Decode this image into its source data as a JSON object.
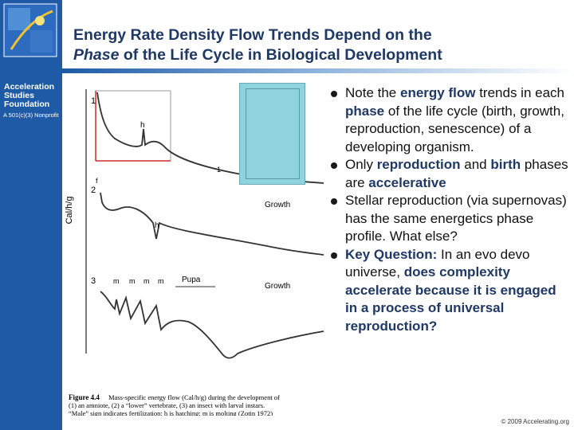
{
  "title": {
    "line1": "Energy Rate Density Flow Trends Depend on the",
    "line2_italic": "Phase",
    "line2_rest": " of the Life Cycle in Biological Development"
  },
  "sidebar": {
    "org_name": "Acceleration Studies Foundation",
    "org_sub": "A 501(c)(3) Nonprofit"
  },
  "figure": {
    "y_axis_label": "Cal/h/g",
    "curve1_num": "1",
    "curve2_num": "2",
    "curve3_num": "3",
    "h_label": "h",
    "f_label": "f",
    "growth_label": "Growth",
    "pupa_label": "Pupa",
    "m_label": "m",
    "caption_bold": "Figure 4.4",
    "caption_lines": [
      "Mass-specific energy flow (Cal/h/g) during the development of",
      "(1) an amniote, (2) a “lower” vertebrate, (3) an insect with larval instars.",
      "“Male” sign indicates fertilization; h is hatching; m is molting (Zotin 1972)"
    ]
  },
  "bullets": [
    {
      "parts": [
        [
          "Note the ",
          false
        ],
        [
          "energy flow",
          true
        ],
        [
          " trends in each ",
          false
        ],
        [
          "phase",
          true
        ],
        [
          " of the life cycle (birth, growth, reproduction, senescence) of a developing organism.",
          false
        ]
      ]
    },
    {
      "parts": [
        [
          "Only ",
          false
        ],
        [
          "reproduction",
          true
        ],
        [
          " and ",
          false
        ],
        [
          "birth",
          true
        ],
        [
          " phases are ",
          false
        ],
        [
          "accelerative",
          true
        ]
      ]
    },
    {
      "parts": [
        [
          "Stellar reproduction (via supernovas) has the same energetics phase profile. What else?",
          false
        ]
      ]
    },
    {
      "parts": [
        [
          "Key Question:",
          true
        ],
        [
          " In an evo devo universe, ",
          false
        ],
        [
          "does complexity accelerate because it is engaged in a process of universal reproduction?",
          true
        ]
      ]
    }
  ],
  "credit": "© 2009 Accelerating.org"
}
